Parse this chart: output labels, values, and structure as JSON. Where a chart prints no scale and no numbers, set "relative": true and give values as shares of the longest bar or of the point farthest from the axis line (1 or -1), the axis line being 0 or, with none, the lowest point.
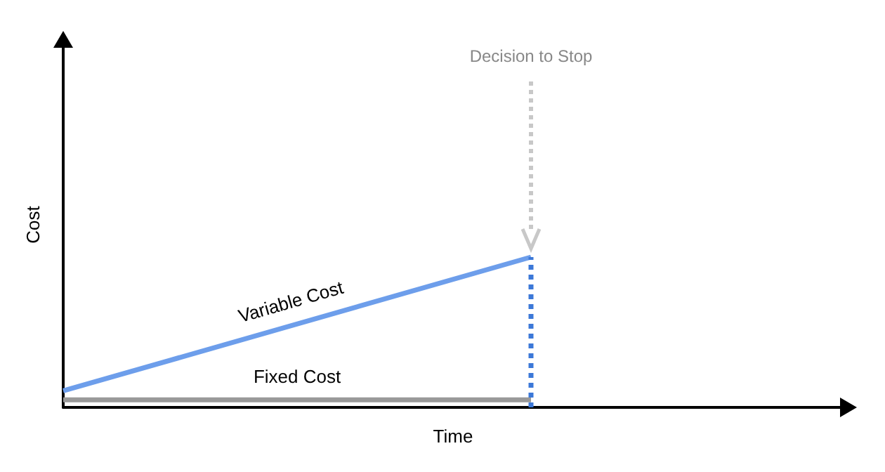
{
  "chart_data": {
    "type": "line",
    "relative": true,
    "xlabel": "Time",
    "ylabel": "Cost",
    "categories": [
      null,
      null,
      null,
      null,
      null,
      null,
      null,
      null,
      null,
      null,
      null
    ],
    "series": [
      {
        "name": "Variable Cost",
        "color": "#6d9eeb",
        "values": [
          0.11,
          null,
          null,
          null,
          null,
          null,
          1,
          null,
          null,
          null,
          null
        ]
      },
      {
        "name": "Fixed Cost",
        "color": "#999999",
        "values": [
          0.05,
          null,
          null,
          null,
          null,
          null,
          0.05,
          null,
          null,
          null,
          null
        ]
      }
    ],
    "annotations": [
      "Decision to Stop"
    ],
    "grid": false,
    "legend": false,
    "marker": "none",
    "line_style": "solid"
  }
}
